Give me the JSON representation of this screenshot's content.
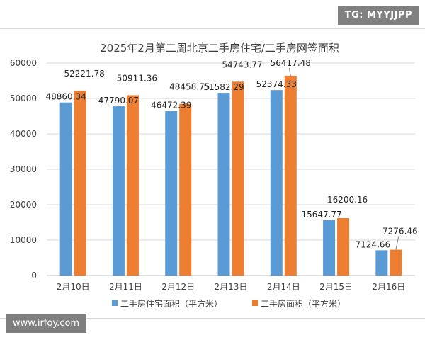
{
  "badges": {
    "top_right": "TG: MYYJJPP",
    "bottom_left": "www.irfoy.com"
  },
  "colors": {
    "series_1": "#5b9bd5",
    "series_2": "#ed7d31",
    "grid": "#d9d9d9",
    "axis_text": "#404040"
  },
  "chart_data": {
    "type": "bar",
    "title": "2025年2月第二周北京二手房住宅/二手房网签面积",
    "categories": [
      "2月10日",
      "2月11日",
      "2月12日",
      "2月13日",
      "2月14日",
      "2月15日",
      "2月16日"
    ],
    "series": [
      {
        "name": "二手房住宅面积（平方米）",
        "values": [
          48860.34,
          47790.07,
          46472.39,
          51582.29,
          52374.33,
          15647.77,
          7124.66
        ],
        "labels": [
          "48860.34",
          "47790.07",
          "46472.39",
          "51582.29",
          "52374.33",
          "15647.77",
          "7124.66"
        ]
      },
      {
        "name": "二手房面积（平方米）",
        "values": [
          52221.78,
          50911.36,
          48458.75,
          54743.77,
          56417.48,
          16200.16,
          7276.46
        ],
        "labels": [
          "52221.78",
          "50911.36",
          "48458.75",
          "54743.77",
          "56417.48",
          "16200.16",
          "7276.46"
        ]
      }
    ],
    "ylim": [
      0,
      60000
    ],
    "yticks": [
      "0",
      "10000",
      "20000",
      "30000",
      "40000",
      "50000",
      "60000"
    ],
    "grid": true,
    "legend": "bottom"
  }
}
